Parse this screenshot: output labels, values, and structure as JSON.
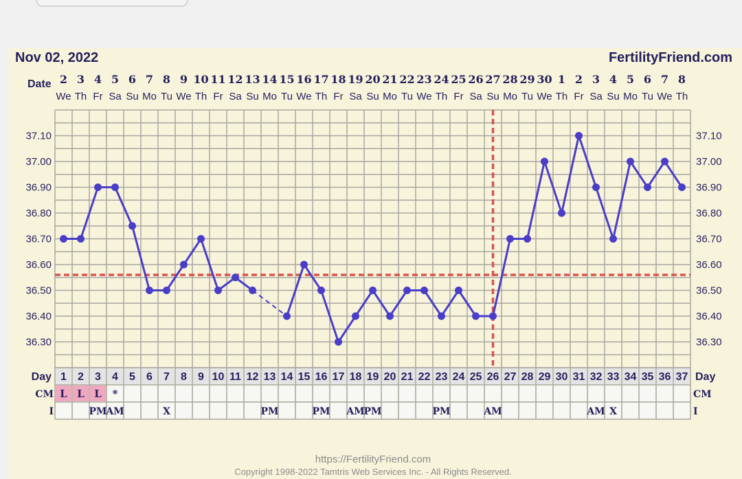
{
  "header": {
    "date": "Nov 02, 2022",
    "brand": "FertilityFriend.com",
    "date_label": "Date"
  },
  "footer": {
    "url": "https://FertilityFriend.com",
    "copyright": "Copyright 1998-2022 Tamtris Web Services Inc. - All Rights Reserved."
  },
  "rows": {
    "day_label": "Day",
    "cm_label": "CM",
    "i_label": "I"
  },
  "colors": {
    "background": "#f8f4dc",
    "line": "#4a3ec8",
    "coverline": "#d9534f",
    "ovulation": "#d9534f",
    "cm_highlight": "#f0a8c0",
    "text": "#231f5c"
  },
  "chart_data": {
    "type": "line",
    "title": "",
    "ylim": [
      36.2,
      37.2
    ],
    "yticks": [
      "37.10",
      "37.00",
      "36.90",
      "36.80",
      "36.70",
      "36.60",
      "36.50",
      "36.40",
      "36.30"
    ],
    "grid": true,
    "dates": [
      "2",
      "3",
      "4",
      "5",
      "6",
      "7",
      "8",
      "9",
      "10",
      "11",
      "12",
      "13",
      "14",
      "15",
      "16",
      "17",
      "18",
      "19",
      "20",
      "21",
      "22",
      "23",
      "24",
      "25",
      "26",
      "27",
      "28",
      "29",
      "30",
      "1",
      "2",
      "3",
      "4",
      "5",
      "6",
      "7",
      "8"
    ],
    "weekdays": [
      "We",
      "Th",
      "Fr",
      "Sa",
      "Su",
      "Mo",
      "Tu",
      "We",
      "Th",
      "Fr",
      "Sa",
      "Su",
      "Mo",
      "Tu",
      "We",
      "Th",
      "Fr",
      "Sa",
      "Su",
      "Mo",
      "Tu",
      "We",
      "Th",
      "Fr",
      "Sa",
      "Su",
      "Mo",
      "Tu",
      "We",
      "Th",
      "Fr",
      "Sa",
      "Su",
      "Mo",
      "Tu",
      "We",
      "Th"
    ],
    "days": [
      1,
      2,
      3,
      4,
      5,
      6,
      7,
      8,
      9,
      10,
      11,
      12,
      13,
      14,
      15,
      16,
      17,
      18,
      19,
      20,
      21,
      22,
      23,
      24,
      25,
      26,
      27,
      28,
      29,
      30,
      31,
      32,
      33,
      34,
      35,
      36,
      37
    ],
    "temperatures": [
      36.7,
      36.7,
      36.9,
      36.9,
      36.75,
      36.5,
      36.5,
      36.6,
      36.7,
      36.5,
      36.55,
      36.5,
      null,
      36.4,
      36.6,
      36.5,
      36.3,
      36.4,
      36.5,
      36.4,
      36.5,
      36.5,
      36.4,
      36.5,
      36.4,
      36.4,
      36.7,
      36.7,
      37.0,
      36.8,
      37.1,
      36.9,
      36.7,
      37.0,
      36.9,
      37.0,
      36.9
    ],
    "coverline": 36.56,
    "ovulation_day": 26,
    "cm": [
      "L",
      "L",
      "L",
      "*",
      "",
      "",
      "",
      "",
      "",
      "",
      "",
      "",
      "",
      "",
      "",
      "",
      "",
      "",
      "",
      "",
      "",
      "",
      "",
      "",
      "",
      "",
      "",
      "",
      "",
      "",
      "",
      "",
      "",
      "",
      "",
      "",
      ""
    ],
    "cm_highlight_days": [
      1,
      2,
      3
    ],
    "intercourse": [
      "",
      "",
      "PM",
      "AM",
      "",
      "",
      "X",
      "",
      "",
      "",
      "",
      "",
      "PM",
      "",
      "",
      "PM",
      "",
      "AM",
      "PM",
      "",
      "",
      "",
      "PM",
      "",
      "",
      "AM",
      "",
      "",
      "",
      "",
      "",
      "AM",
      "X",
      "",
      "",
      "",
      ""
    ]
  }
}
